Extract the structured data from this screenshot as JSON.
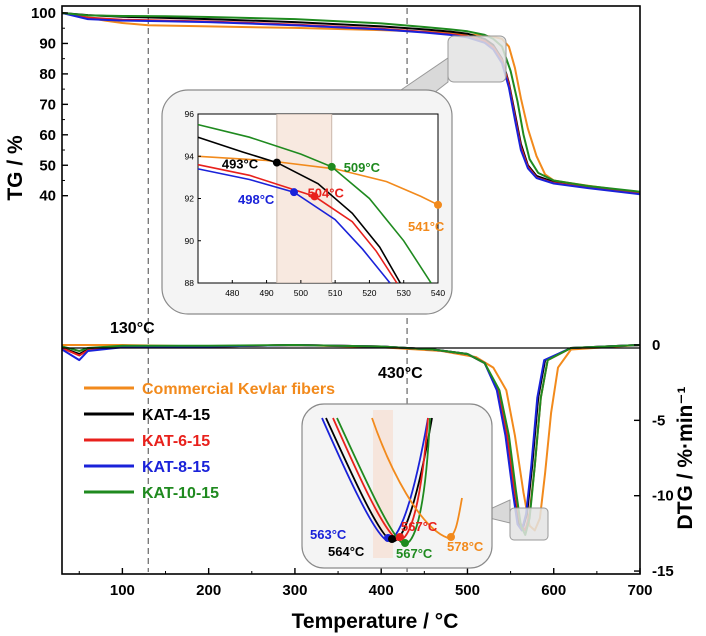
{
  "chart_data": [
    {
      "type": "line",
      "panel": "TG",
      "ylabel": "TG / %",
      "xlim": [
        30,
        700
      ],
      "ylim": [
        35,
        102
      ],
      "yticks": [
        40,
        50,
        60,
        70,
        80,
        90,
        100
      ],
      "annotations": [
        "130°C",
        "430°C"
      ],
      "vlines_x": [
        130,
        430
      ],
      "series": [
        {
          "name": "Commercial Kevlar fibers",
          "color": "#f28a1c",
          "x": [
            30,
            60,
            80,
            100,
            130,
            200,
            300,
            400,
            450,
            500,
            530,
            540,
            548,
            555,
            562,
            570,
            580,
            590,
            600,
            615,
            640,
            700
          ],
          "y": [
            100,
            98.5,
            97.5,
            96.7,
            96,
            95.6,
            95.1,
            94.4,
            93.9,
            93,
            92.2,
            91.5,
            89,
            82,
            72,
            62,
            53,
            47,
            45,
            44.3,
            43.3,
            41
          ]
        },
        {
          "name": "KAT-4-15",
          "color": "#000000",
          "x": [
            30,
            60,
            100,
            150,
            200,
            300,
            400,
            450,
            480,
            500,
            520,
            530,
            540,
            548,
            555,
            562,
            570,
            580,
            600,
            640,
            700
          ],
          "y": [
            100,
            99.3,
            98.8,
            98.4,
            98,
            97,
            95.6,
            94.6,
            93.9,
            93.2,
            91.5,
            89.5,
            85,
            77,
            67,
            57,
            50,
            46.5,
            44.5,
            43,
            41
          ]
        },
        {
          "name": "KAT-6-15",
          "color": "#e8211c",
          "x": [
            30,
            60,
            100,
            150,
            200,
            300,
            400,
            450,
            480,
            500,
            520,
            530,
            540,
            548,
            555,
            562,
            570,
            580,
            600,
            640,
            700
          ],
          "y": [
            100,
            98.5,
            97.8,
            97.5,
            97.2,
            96.2,
            94.8,
            93.8,
            93,
            92.4,
            90.8,
            88.8,
            84.5,
            76.5,
            66,
            56,
            49.5,
            46,
            44.2,
            42.8,
            40.8
          ]
        },
        {
          "name": "KAT-8-15",
          "color": "#1a22d9",
          "x": [
            30,
            60,
            100,
            150,
            200,
            300,
            400,
            450,
            480,
            500,
            520,
            530,
            540,
            548,
            555,
            562,
            570,
            580,
            600,
            640,
            700
          ],
          "y": [
            100,
            98,
            97.5,
            97.3,
            97,
            96,
            94.6,
            93.6,
            92.8,
            92,
            90.2,
            88,
            83.5,
            75.5,
            65,
            55,
            49,
            45.8,
            44,
            42.5,
            40.5
          ]
        },
        {
          "name": "KAT-10-15",
          "color": "#1f8a1f",
          "x": [
            30,
            60,
            100,
            150,
            200,
            300,
            400,
            450,
            480,
            500,
            520,
            530,
            540,
            550,
            558,
            565,
            572,
            582,
            600,
            640,
            700
          ],
          "y": [
            100,
            99.2,
            99,
            98.9,
            98.7,
            98,
            96.6,
            95.4,
            94.6,
            94,
            92.8,
            91.5,
            89,
            81,
            71,
            60,
            52,
            47.5,
            45,
            43.2,
            41.3
          ]
        }
      ]
    },
    {
      "type": "line",
      "panel": "DTG",
      "xlabel": "Temperature / °C",
      "ylabel": "DTG / %·min⁻¹",
      "xlim": [
        30,
        700
      ],
      "ylim": [
        -15,
        0.5
      ],
      "xticks": [
        100,
        200,
        300,
        400,
        500,
        600,
        700
      ],
      "yticks": [
        0,
        -5,
        -10,
        -15
      ],
      "series": [
        {
          "name": "Commercial Kevlar fibers",
          "color": "#f28a1c",
          "x": [
            30,
            100,
            200,
            300,
            400,
            470,
            510,
            530,
            545,
            555,
            565,
            572,
            578,
            584,
            590,
            597,
            605,
            620,
            700
          ],
          "y": [
            0,
            0,
            -0.1,
            0,
            -0.15,
            -0.4,
            -0.8,
            -1.5,
            -3,
            -6,
            -9.8,
            -12,
            -12.3,
            -11.5,
            -8.5,
            -4.5,
            -1.5,
            -0.3,
            0
          ]
        },
        {
          "name": "KAT-4-15",
          "color": "#000000",
          "x": [
            30,
            50,
            60,
            100,
            200,
            300,
            400,
            460,
            500,
            520,
            535,
            545,
            553,
            559,
            564,
            569,
            575,
            582,
            590,
            620,
            700
          ],
          "y": [
            -0.2,
            -0.6,
            -0.3,
            -0.1,
            -0.1,
            0,
            -0.1,
            -0.3,
            -0.6,
            -1.2,
            -3,
            -6,
            -9.5,
            -11.8,
            -12.2,
            -11.2,
            -8,
            -3.5,
            -1,
            -0.2,
            0
          ]
        },
        {
          "name": "KAT-6-15",
          "color": "#e8211c",
          "x": [
            30,
            50,
            60,
            100,
            200,
            300,
            400,
            460,
            500,
            520,
            535,
            546,
            554,
            561,
            567,
            572,
            578,
            585,
            593,
            620,
            700
          ],
          "y": [
            -0.2,
            -0.7,
            -0.35,
            -0.1,
            -0.1,
            0,
            -0.1,
            -0.3,
            -0.6,
            -1.2,
            -3,
            -6,
            -9.5,
            -11.8,
            -12.3,
            -11.2,
            -8,
            -3.5,
            -1,
            -0.2,
            0
          ]
        },
        {
          "name": "KAT-8-15",
          "color": "#1a22d9",
          "x": [
            30,
            50,
            60,
            100,
            200,
            300,
            400,
            460,
            500,
            520,
            534,
            544,
            552,
            558,
            563,
            568,
            574,
            581,
            589,
            620,
            700
          ],
          "y": [
            -0.3,
            -1.0,
            -0.4,
            -0.15,
            -0.1,
            0,
            -0.1,
            -0.3,
            -0.6,
            -1.2,
            -3,
            -6,
            -9.5,
            -11.9,
            -12.3,
            -11.2,
            -8,
            -3.5,
            -1,
            -0.2,
            0
          ]
        },
        {
          "name": "KAT-10-15",
          "color": "#1f8a1f",
          "x": [
            30,
            50,
            60,
            100,
            200,
            300,
            400,
            460,
            500,
            520,
            537,
            548,
            556,
            562,
            567,
            572,
            578,
            585,
            593,
            620,
            700
          ],
          "y": [
            -0.1,
            -0.4,
            -0.2,
            -0.05,
            -0.05,
            0,
            -0.1,
            -0.3,
            -0.6,
            -1.2,
            -3,
            -6,
            -9.6,
            -12,
            -12.6,
            -11.5,
            -8,
            -3.5,
            -1,
            -0.2,
            0
          ]
        }
      ]
    },
    {
      "type": "line",
      "panel": "TG-inset",
      "xlim": [
        470,
        540
      ],
      "ylim": [
        88,
        96
      ],
      "xticks": [
        480,
        490,
        500,
        510,
        520,
        530,
        540
      ],
      "yticks": [
        88,
        90,
        92,
        94,
        96
      ],
      "points": [
        {
          "label": "493°C",
          "series": "KAT-4-15",
          "color": "#000000",
          "x": 493,
          "y": 93.7
        },
        {
          "label": "509°C",
          "series": "KAT-10-15",
          "color": "#1f8a1f",
          "x": 509,
          "y": 93.5
        },
        {
          "label": "498°C",
          "series": "KAT-8-15",
          "color": "#1a22d9",
          "x": 498,
          "y": 92.3
        },
        {
          "label": "504°C",
          "series": "KAT-6-15",
          "color": "#e8211c",
          "x": 504,
          "y": 92.1
        },
        {
          "label": "541°C",
          "series": "Commercial Kevlar fibers",
          "color": "#f28a1c",
          "x": 540,
          "y": 91.7
        }
      ]
    },
    {
      "type": "line",
      "panel": "DTG-inset",
      "points": [
        {
          "label": "563°C",
          "series": "KAT-8-15",
          "color": "#1a22d9"
        },
        {
          "label": "564°C",
          "series": "KAT-4-15",
          "color": "#000000"
        },
        {
          "label": "567°C",
          "series": "KAT-6-15",
          "color": "#e8211c"
        },
        {
          "label": "567°C",
          "series": "KAT-10-15",
          "color": "#1f8a1f"
        },
        {
          "label": "578°C",
          "series": "Commercial Kevlar fibers",
          "color": "#f28a1c"
        }
      ]
    }
  ]
}
